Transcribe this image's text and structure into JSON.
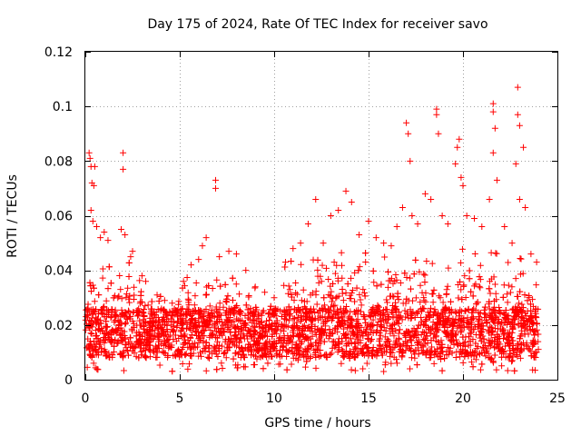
{
  "chart_data": {
    "type": "scatter",
    "title": "Day 175 of 2024, Rate Of TEC Index for receiver savo",
    "xlabel": "GPS time / hours",
    "ylabel": "ROTI / TECUs",
    "xlim": [
      0,
      25
    ],
    "ylim": [
      0,
      0.12
    ],
    "xticks": [
      0,
      5,
      10,
      15,
      20,
      25
    ],
    "xtick_labels": [
      "0",
      "5",
      "10",
      "15",
      "20",
      "25"
    ],
    "yticks": [
      0,
      0.02,
      0.04,
      0.06,
      0.08,
      0.1,
      0.12
    ],
    "ytick_labels": [
      "0",
      "0.02",
      "0.04",
      "0.06",
      "0.08",
      "0.1",
      "0.12"
    ],
    "grid": true,
    "marker": "+",
    "color": "#ff0000",
    "series": [
      {
        "name": "ROTI",
        "points": [
          [
            0.2,
            0.083
          ],
          [
            0.25,
            0.081
          ],
          [
            0.3,
            0.078
          ],
          [
            0.35,
            0.072
          ],
          [
            0.45,
            0.071
          ],
          [
            0.5,
            0.078
          ],
          [
            0.3,
            0.062
          ],
          [
            0.4,
            0.058
          ],
          [
            0.6,
            0.056
          ],
          [
            0.8,
            0.052
          ],
          [
            1.0,
            0.054
          ],
          [
            1.2,
            0.051
          ],
          [
            2.0,
            0.083
          ],
          [
            2.0,
            0.077
          ],
          [
            1.9,
            0.055
          ],
          [
            2.1,
            0.053
          ],
          [
            2.5,
            0.047
          ],
          [
            2.4,
            0.045
          ],
          [
            3.0,
            0.038
          ],
          [
            3.2,
            0.036
          ],
          [
            3.8,
            0.031
          ],
          [
            4.2,
            0.029
          ],
          [
            4.6,
            0.028
          ],
          [
            5.2,
            0.036
          ],
          [
            5.6,
            0.042
          ],
          [
            6.0,
            0.044
          ],
          [
            6.2,
            0.049
          ],
          [
            6.4,
            0.052
          ],
          [
            6.9,
            0.073
          ],
          [
            6.9,
            0.07
          ],
          [
            7.1,
            0.045
          ],
          [
            7.6,
            0.047
          ],
          [
            8.0,
            0.046
          ],
          [
            8.5,
            0.04
          ],
          [
            9.0,
            0.034
          ],
          [
            9.5,
            0.032
          ],
          [
            10.0,
            0.03
          ],
          [
            10.6,
            0.043
          ],
          [
            11.0,
            0.048
          ],
          [
            11.4,
            0.05
          ],
          [
            11.8,
            0.057
          ],
          [
            12.2,
            0.066
          ],
          [
            12.6,
            0.05
          ],
          [
            13.0,
            0.06
          ],
          [
            13.4,
            0.062
          ],
          [
            13.8,
            0.069
          ],
          [
            14.1,
            0.065
          ],
          [
            14.5,
            0.053
          ],
          [
            15.0,
            0.058
          ],
          [
            15.4,
            0.052
          ],
          [
            15.8,
            0.05
          ],
          [
            16.2,
            0.049
          ],
          [
            16.5,
            0.056
          ],
          [
            16.8,
            0.063
          ],
          [
            17.0,
            0.094
          ],
          [
            17.1,
            0.09
          ],
          [
            17.2,
            0.08
          ],
          [
            17.3,
            0.06
          ],
          [
            17.6,
            0.057
          ],
          [
            18.0,
            0.068
          ],
          [
            18.3,
            0.066
          ],
          [
            18.6,
            0.099
          ],
          [
            18.6,
            0.097
          ],
          [
            18.7,
            0.09
          ],
          [
            18.9,
            0.06
          ],
          [
            19.2,
            0.057
          ],
          [
            19.6,
            0.079
          ],
          [
            19.7,
            0.085
          ],
          [
            19.8,
            0.088
          ],
          [
            19.9,
            0.074
          ],
          [
            20.0,
            0.071
          ],
          [
            20.2,
            0.06
          ],
          [
            20.6,
            0.059
          ],
          [
            21.0,
            0.056
          ],
          [
            21.4,
            0.066
          ],
          [
            21.6,
            0.101
          ],
          [
            21.6,
            0.098
          ],
          [
            21.7,
            0.092
          ],
          [
            21.6,
            0.083
          ],
          [
            21.8,
            0.073
          ],
          [
            22.2,
            0.056
          ],
          [
            22.6,
            0.05
          ],
          [
            22.8,
            0.079
          ],
          [
            22.9,
            0.107
          ],
          [
            22.9,
            0.097
          ],
          [
            23.0,
            0.093
          ],
          [
            23.2,
            0.085
          ],
          [
            23.0,
            0.066
          ],
          [
            23.3,
            0.063
          ],
          [
            23.6,
            0.046
          ],
          [
            23.9,
            0.043
          ]
        ]
      }
    ]
  }
}
